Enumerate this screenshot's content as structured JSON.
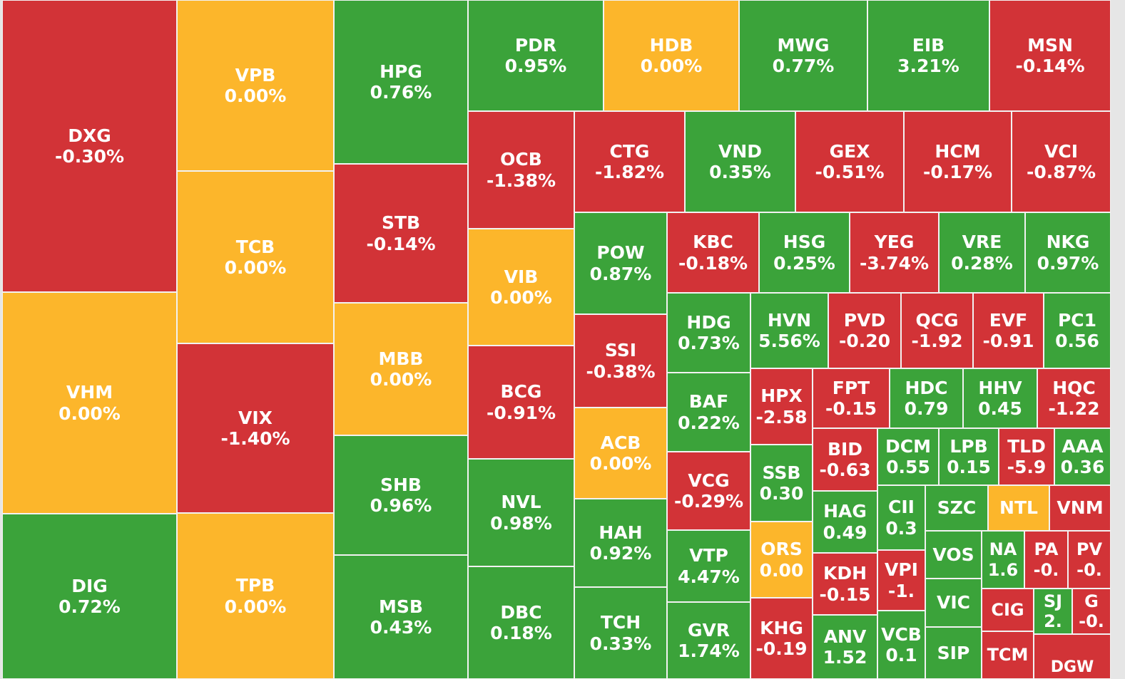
{
  "chart_data": {
    "type": "treemap",
    "colors": {
      "up": "#3ba33a",
      "down": "#d23337",
      "flat": "#fcb62b"
    },
    "tiles": [
      {
        "symbol": "DXG",
        "change": "-0.30%",
        "trend": "down"
      },
      {
        "symbol": "VHM",
        "change": "0.00%",
        "trend": "flat"
      },
      {
        "symbol": "DIG",
        "change": "0.72%",
        "trend": "up"
      },
      {
        "symbol": "VPB",
        "change": "0.00%",
        "trend": "flat"
      },
      {
        "symbol": "TCB",
        "change": "0.00%",
        "trend": "flat"
      },
      {
        "symbol": "VIX",
        "change": "-1.40%",
        "trend": "down"
      },
      {
        "symbol": "TPB",
        "change": "0.00%",
        "trend": "flat"
      },
      {
        "symbol": "HPG",
        "change": "0.76%",
        "trend": "up"
      },
      {
        "symbol": "STB",
        "change": "-0.14%",
        "trend": "down"
      },
      {
        "symbol": "MBB",
        "change": "0.00%",
        "trend": "flat"
      },
      {
        "symbol": "SHB",
        "change": "0.96%",
        "trend": "up"
      },
      {
        "symbol": "MSB",
        "change": "0.43%",
        "trend": "up"
      },
      {
        "symbol": "PDR",
        "change": "0.95%",
        "trend": "up"
      },
      {
        "symbol": "HDB",
        "change": "0.00%",
        "trend": "flat"
      },
      {
        "symbol": "MWG",
        "change": "0.77%",
        "trend": "up"
      },
      {
        "symbol": "EIB",
        "change": "3.21%",
        "trend": "up"
      },
      {
        "symbol": "MSN",
        "change": "-0.14%",
        "trend": "down"
      },
      {
        "symbol": "OCB",
        "change": "-1.38%",
        "trend": "down"
      },
      {
        "symbol": "VIB",
        "change": "0.00%",
        "trend": "flat"
      },
      {
        "symbol": "BCG",
        "change": "-0.91%",
        "trend": "down"
      },
      {
        "symbol": "NVL",
        "change": "0.98%",
        "trend": "up"
      },
      {
        "symbol": "DBC",
        "change": "0.18%",
        "trend": "up"
      },
      {
        "symbol": "CTG",
        "change": "-1.82%",
        "trend": "down"
      },
      {
        "symbol": "VND",
        "change": "0.35%",
        "trend": "up"
      },
      {
        "symbol": "GEX",
        "change": "-0.51%",
        "trend": "down"
      },
      {
        "symbol": "HCM",
        "change": "-0.17%",
        "trend": "down"
      },
      {
        "symbol": "VCI",
        "change": "-0.87%",
        "trend": "down"
      },
      {
        "symbol": "POW",
        "change": "0.87%",
        "trend": "up"
      },
      {
        "symbol": "SSI",
        "change": "-0.38%",
        "trend": "down"
      },
      {
        "symbol": "ACB",
        "change": "0.00%",
        "trend": "flat"
      },
      {
        "symbol": "HAH",
        "change": "0.92%",
        "trend": "up"
      },
      {
        "symbol": "TCH",
        "change": "0.33%",
        "trend": "up"
      },
      {
        "symbol": "KBC",
        "change": "-0.18%",
        "trend": "down"
      },
      {
        "symbol": "HSG",
        "change": "0.25%",
        "trend": "up"
      },
      {
        "symbol": "YEG",
        "change": "-3.74%",
        "trend": "down"
      },
      {
        "symbol": "VRE",
        "change": "0.28%",
        "trend": "up"
      },
      {
        "symbol": "NKG",
        "change": "0.97%",
        "trend": "up"
      },
      {
        "symbol": "HDG",
        "change": "0.73%",
        "trend": "up"
      },
      {
        "symbol": "BAF",
        "change": "0.22%",
        "trend": "up"
      },
      {
        "symbol": "VCG",
        "change": "-0.29%",
        "trend": "down"
      },
      {
        "symbol": "VTP",
        "change": "4.47%",
        "trend": "up"
      },
      {
        "symbol": "GVR",
        "change": "1.74%",
        "trend": "up"
      },
      {
        "symbol": "HVN",
        "change": "5.56%",
        "trend": "up"
      },
      {
        "symbol": "PVD",
        "change": "-0.20",
        "trend": "down"
      },
      {
        "symbol": "QCG",
        "change": "-1.92",
        "trend": "down"
      },
      {
        "symbol": "EVF",
        "change": "-0.91",
        "trend": "down"
      },
      {
        "symbol": "PC1",
        "change": "0.56",
        "trend": "up"
      },
      {
        "symbol": "HPX",
        "change": "-2.58",
        "trend": "down"
      },
      {
        "symbol": "SSB",
        "change": "0.30",
        "trend": "up"
      },
      {
        "symbol": "ORS",
        "change": "0.00",
        "trend": "flat"
      },
      {
        "symbol": "KHG",
        "change": "-0.19",
        "trend": "down"
      },
      {
        "symbol": "FPT",
        "change": "-0.15",
        "trend": "down"
      },
      {
        "symbol": "HDC",
        "change": "0.79",
        "trend": "up"
      },
      {
        "symbol": "HHV",
        "change": "0.45",
        "trend": "up"
      },
      {
        "symbol": "HQC",
        "change": "-1.22",
        "trend": "down"
      },
      {
        "symbol": "BID",
        "change": "-0.63",
        "trend": "down"
      },
      {
        "symbol": "HAG",
        "change": "0.49",
        "trend": "up"
      },
      {
        "symbol": "KDH",
        "change": "-0.15",
        "trend": "down"
      },
      {
        "symbol": "ANV",
        "change": "1.52",
        "trend": "up"
      },
      {
        "symbol": "DCM",
        "change": "0.55",
        "trend": "up"
      },
      {
        "symbol": "LPB",
        "change": "0.15",
        "trend": "up"
      },
      {
        "symbol": "TLD",
        "change": "-5.9",
        "trend": "down"
      },
      {
        "symbol": "AAA",
        "change": "0.36",
        "trend": "up"
      },
      {
        "symbol": "CII",
        "change": "0.3",
        "trend": "up"
      },
      {
        "symbol": "VPI",
        "change": "-1.",
        "trend": "down"
      },
      {
        "symbol": "VCB",
        "change": "0.1",
        "trend": "up"
      },
      {
        "symbol": "SZC",
        "change": "",
        "trend": "up"
      },
      {
        "symbol": "NTL",
        "change": "",
        "trend": "flat"
      },
      {
        "symbol": "VNM",
        "change": "",
        "trend": "down"
      },
      {
        "symbol": "VOS",
        "change": "",
        "trend": "up"
      },
      {
        "symbol": "VIC",
        "change": "",
        "trend": "up"
      },
      {
        "symbol": "SIP",
        "change": "",
        "trend": "up"
      },
      {
        "symbol": "NA",
        "change": "1.6",
        "trend": "up"
      },
      {
        "symbol": "PA",
        "change": "-0.",
        "trend": "down"
      },
      {
        "symbol": "PV",
        "change": "-0.",
        "trend": "down"
      },
      {
        "symbol": "CIG",
        "change": "",
        "trend": "down"
      },
      {
        "symbol": "SJ",
        "change": "2.",
        "trend": "up"
      },
      {
        "symbol": "G",
        "change": "-0.",
        "trend": "down"
      },
      {
        "symbol": "TCM",
        "change": "",
        "trend": "down"
      },
      {
        "symbol": "DGW",
        "change": "",
        "trend": "down"
      }
    ]
  }
}
